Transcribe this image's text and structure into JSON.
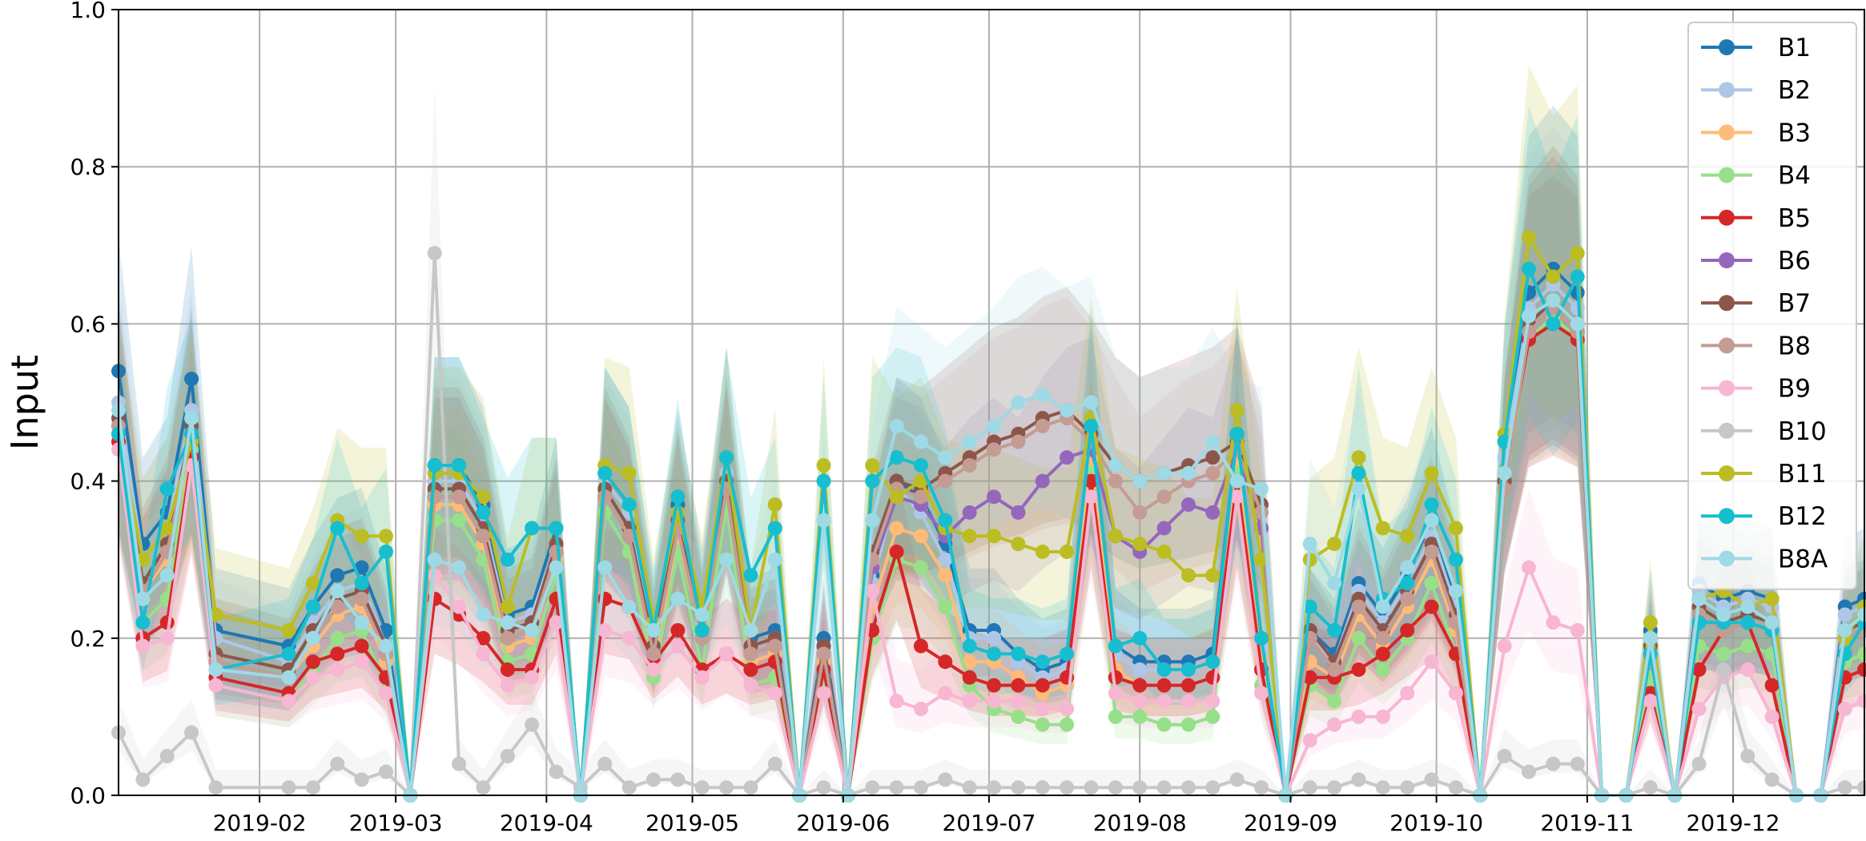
{
  "chart_data": {
    "type": "line",
    "title": "",
    "xlabel": "",
    "ylabel": "Input",
    "ylim": [
      0.0,
      1.0
    ],
    "xlim": [
      "2019-01-03",
      "2019-12-28"
    ],
    "grid": true,
    "legend_position": "top-right",
    "y_ticks": [
      "0.0",
      "0.2",
      "0.4",
      "0.6",
      "0.8",
      "1.0"
    ],
    "x_ticks": [
      {
        "date": "2019-02-01",
        "label": "2019-02"
      },
      {
        "date": "2019-03-01",
        "label": "2019-03"
      },
      {
        "date": "2019-04-01",
        "label": "2019-04"
      },
      {
        "date": "2019-05-01",
        "label": "2019-05"
      },
      {
        "date": "2019-06-01",
        "label": "2019-06"
      },
      {
        "date": "2019-07-01",
        "label": "2019-07"
      },
      {
        "date": "2019-08-01",
        "label": "2019-08"
      },
      {
        "date": "2019-09-01",
        "label": "2019-09"
      },
      {
        "date": "2019-10-01",
        "label": "2019-10"
      },
      {
        "date": "2019-11-01",
        "label": "2019-11"
      },
      {
        "date": "2019-12-01",
        "label": "2019-12"
      }
    ],
    "x": [
      "2019-01-03",
      "2019-01-08",
      "2019-01-13",
      "2019-01-18",
      "2019-01-23",
      "2019-02-07",
      "2019-02-12",
      "2019-02-17",
      "2019-02-22",
      "2019-02-27",
      "2019-03-04",
      "2019-03-09",
      "2019-03-14",
      "2019-03-19",
      "2019-03-24",
      "2019-03-29",
      "2019-04-03",
      "2019-04-08",
      "2019-04-13",
      "2019-04-18",
      "2019-04-23",
      "2019-04-28",
      "2019-05-03",
      "2019-05-08",
      "2019-05-13",
      "2019-05-18",
      "2019-05-23",
      "2019-05-28",
      "2019-06-02",
      "2019-06-07",
      "2019-06-12",
      "2019-06-17",
      "2019-06-22",
      "2019-06-27",
      "2019-07-02",
      "2019-07-07",
      "2019-07-12",
      "2019-07-17",
      "2019-07-22",
      "2019-07-27",
      "2019-08-01",
      "2019-08-06",
      "2019-08-11",
      "2019-08-16",
      "2019-08-21",
      "2019-08-26",
      "2019-08-31",
      "2019-09-05",
      "2019-09-10",
      "2019-09-15",
      "2019-09-20",
      "2019-09-25",
      "2019-09-30",
      "2019-10-05",
      "2019-10-10",
      "2019-10-15",
      "2019-10-20",
      "2019-10-25",
      "2019-10-30",
      "2019-11-04",
      "2019-11-09",
      "2019-11-14",
      "2019-11-19",
      "2019-11-24",
      "2019-11-29",
      "2019-12-04",
      "2019-12-09",
      "2019-12-14",
      "2019-12-19",
      "2019-12-24",
      "2019-12-28"
    ],
    "series": [
      {
        "name": "B1",
        "color": "#1f77b4",
        "values": [
          0.54,
          0.32,
          0.36,
          0.53,
          0.21,
          0.19,
          0.24,
          0.28,
          0.29,
          0.21,
          0.0,
          0.42,
          0.42,
          0.37,
          0.23,
          0.24,
          0.34,
          0.0,
          0.41,
          0.37,
          0.2,
          0.37,
          0.23,
          0.43,
          0.2,
          0.21,
          0.0,
          0.2,
          0.0,
          0.28,
          0.4,
          0.38,
          0.32,
          0.21,
          0.21,
          0.18,
          0.16,
          0.17,
          0.46,
          0.19,
          0.17,
          0.17,
          0.17,
          0.18,
          0.46,
          0.2,
          0.0,
          0.21,
          0.18,
          0.27,
          0.23,
          0.28,
          0.35,
          0.25,
          0.0,
          0.45,
          0.64,
          0.67,
          0.64,
          0.0,
          0.0,
          0.21,
          0.0,
          0.27,
          0.25,
          0.26,
          0.25,
          0.0,
          0.0,
          0.24,
          0.25
        ]
      },
      {
        "name": "B2",
        "color": "#aec7e8",
        "values": [
          0.5,
          0.3,
          0.34,
          0.49,
          0.2,
          0.17,
          0.22,
          0.26,
          0.27,
          0.19,
          0.0,
          0.4,
          0.4,
          0.35,
          0.22,
          0.23,
          0.32,
          0.0,
          0.4,
          0.36,
          0.19,
          0.35,
          0.22,
          0.41,
          0.19,
          0.2,
          0.0,
          0.19,
          0.0,
          0.27,
          0.39,
          0.36,
          0.3,
          0.2,
          0.2,
          0.17,
          0.15,
          0.16,
          0.45,
          0.18,
          0.16,
          0.16,
          0.16,
          0.17,
          0.45,
          0.19,
          0.0,
          0.2,
          0.17,
          0.26,
          0.22,
          0.27,
          0.33,
          0.24,
          0.0,
          0.43,
          0.62,
          0.65,
          0.62,
          0.0,
          0.0,
          0.2,
          0.0,
          0.26,
          0.24,
          0.25,
          0.24,
          0.0,
          0.0,
          0.23,
          0.24
        ]
      },
      {
        "name": "B3",
        "color": "#ffbb78",
        "values": [
          0.47,
          0.26,
          0.3,
          0.45,
          0.17,
          0.15,
          0.19,
          0.23,
          0.24,
          0.17,
          0.0,
          0.37,
          0.37,
          0.32,
          0.19,
          0.2,
          0.3,
          0.0,
          0.38,
          0.33,
          0.17,
          0.33,
          0.2,
          0.39,
          0.17,
          0.18,
          0.0,
          0.17,
          0.0,
          0.24,
          0.34,
          0.33,
          0.28,
          0.17,
          0.17,
          0.15,
          0.13,
          0.14,
          0.43,
          0.16,
          0.14,
          0.14,
          0.14,
          0.15,
          0.43,
          0.17,
          0.0,
          0.17,
          0.15,
          0.23,
          0.19,
          0.24,
          0.3,
          0.21,
          0.0,
          0.41,
          0.6,
          0.63,
          0.6,
          0.0,
          0.0,
          0.18,
          0.0,
          0.23,
          0.21,
          0.22,
          0.21,
          0.0,
          0.0,
          0.2,
          0.21
        ]
      },
      {
        "name": "B4",
        "color": "#98df8a",
        "values": [
          0.46,
          0.22,
          0.25,
          0.44,
          0.14,
          0.12,
          0.16,
          0.2,
          0.21,
          0.14,
          0.0,
          0.35,
          0.35,
          0.3,
          0.17,
          0.18,
          0.28,
          0.0,
          0.36,
          0.31,
          0.15,
          0.31,
          0.16,
          0.37,
          0.14,
          0.15,
          0.0,
          0.15,
          0.0,
          0.2,
          0.3,
          0.29,
          0.24,
          0.14,
          0.11,
          0.1,
          0.09,
          0.09,
          0.41,
          0.1,
          0.1,
          0.09,
          0.09,
          0.1,
          0.41,
          0.14,
          0.0,
          0.14,
          0.12,
          0.2,
          0.16,
          0.2,
          0.27,
          0.18,
          0.0,
          0.39,
          0.58,
          0.61,
          0.58,
          0.0,
          0.0,
          0.15,
          0.0,
          0.19,
          0.18,
          0.19,
          0.18,
          0.0,
          0.0,
          0.17,
          0.18
        ]
      },
      {
        "name": "B5",
        "color": "#d62728",
        "values": [
          0.45,
          0.2,
          0.22,
          0.43,
          0.15,
          0.13,
          0.17,
          0.18,
          0.19,
          0.15,
          0.0,
          0.25,
          0.23,
          0.2,
          0.16,
          0.16,
          0.25,
          0.0,
          0.25,
          0.24,
          0.17,
          0.21,
          0.16,
          0.18,
          0.16,
          0.17,
          0.0,
          0.16,
          0.0,
          0.21,
          0.31,
          0.19,
          0.17,
          0.15,
          0.14,
          0.14,
          0.14,
          0.15,
          0.4,
          0.15,
          0.14,
          0.14,
          0.14,
          0.15,
          0.4,
          0.16,
          0.0,
          0.15,
          0.15,
          0.16,
          0.18,
          0.21,
          0.24,
          0.18,
          0.0,
          0.4,
          0.58,
          0.6,
          0.58,
          0.0,
          0.0,
          0.13,
          0.0,
          0.16,
          0.21,
          0.22,
          0.14,
          0.0,
          0.0,
          0.15,
          0.16
        ]
      },
      {
        "name": "B6",
        "color": "#9467bd",
        "values": [
          0.47,
          0.26,
          0.31,
          0.46,
          0.17,
          0.15,
          0.2,
          0.24,
          0.25,
          0.18,
          0.0,
          0.38,
          0.38,
          0.33,
          0.2,
          0.21,
          0.31,
          0.0,
          0.38,
          0.33,
          0.18,
          0.34,
          0.2,
          0.39,
          0.18,
          0.19,
          0.0,
          0.18,
          0.0,
          0.29,
          0.38,
          0.37,
          0.33,
          0.36,
          0.38,
          0.36,
          0.4,
          0.43,
          0.44,
          0.33,
          0.31,
          0.34,
          0.37,
          0.36,
          0.44,
          0.34,
          0.0,
          0.2,
          0.16,
          0.24,
          0.2,
          0.25,
          0.31,
          0.22,
          0.0,
          0.39,
          0.59,
          0.62,
          0.59,
          0.0,
          0.0,
          0.18,
          0.0,
          0.23,
          0.21,
          0.22,
          0.21,
          0.0,
          0.0,
          0.2,
          0.21
        ]
      },
      {
        "name": "B7",
        "color": "#8c564b",
        "values": [
          0.48,
          0.27,
          0.32,
          0.47,
          0.18,
          0.16,
          0.21,
          0.25,
          0.26,
          0.19,
          0.0,
          0.39,
          0.39,
          0.34,
          0.21,
          0.22,
          0.32,
          0.0,
          0.39,
          0.34,
          0.19,
          0.35,
          0.21,
          0.4,
          0.19,
          0.2,
          0.0,
          0.19,
          0.0,
          0.31,
          0.4,
          0.39,
          0.41,
          0.43,
          0.45,
          0.46,
          0.48,
          0.49,
          0.46,
          0.42,
          0.4,
          0.41,
          0.42,
          0.43,
          0.45,
          0.37,
          0.0,
          0.21,
          0.17,
          0.25,
          0.21,
          0.26,
          0.32,
          0.23,
          0.0,
          0.4,
          0.6,
          0.63,
          0.6,
          0.0,
          0.0,
          0.19,
          0.0,
          0.24,
          0.22,
          0.23,
          0.22,
          0.0,
          0.0,
          0.21,
          0.22
        ]
      },
      {
        "name": "B8",
        "color": "#c49c94",
        "values": [
          0.47,
          0.26,
          0.31,
          0.46,
          0.17,
          0.15,
          0.2,
          0.24,
          0.25,
          0.18,
          0.0,
          0.38,
          0.38,
          0.33,
          0.2,
          0.21,
          0.31,
          0.0,
          0.38,
          0.33,
          0.18,
          0.34,
          0.2,
          0.39,
          0.18,
          0.19,
          0.0,
          0.18,
          0.0,
          0.3,
          0.39,
          0.38,
          0.4,
          0.42,
          0.44,
          0.45,
          0.47,
          0.48,
          0.45,
          0.4,
          0.36,
          0.38,
          0.4,
          0.41,
          0.44,
          0.36,
          0.0,
          0.2,
          0.16,
          0.24,
          0.2,
          0.25,
          0.31,
          0.22,
          0.0,
          0.39,
          0.59,
          0.62,
          0.59,
          0.0,
          0.0,
          0.18,
          0.0,
          0.23,
          0.21,
          0.22,
          0.21,
          0.0,
          0.0,
          0.2,
          0.21
        ]
      },
      {
        "name": "B9",
        "color": "#f7b6d2",
        "values": [
          0.44,
          0.19,
          0.2,
          0.42,
          0.14,
          0.12,
          0.15,
          0.16,
          0.17,
          0.13,
          0.0,
          0.28,
          0.24,
          0.18,
          0.14,
          0.15,
          0.22,
          0.0,
          0.21,
          0.2,
          0.16,
          0.19,
          0.15,
          0.18,
          0.14,
          0.13,
          0.0,
          0.13,
          0.0,
          0.26,
          0.12,
          0.11,
          0.13,
          0.12,
          0.12,
          0.12,
          0.11,
          0.11,
          0.38,
          0.13,
          0.12,
          0.12,
          0.12,
          0.12,
          0.38,
          0.13,
          0.0,
          0.07,
          0.09,
          0.1,
          0.1,
          0.13,
          0.17,
          0.13,
          0.0,
          0.19,
          0.29,
          0.22,
          0.21,
          0.0,
          0.0,
          0.12,
          0.0,
          0.11,
          0.15,
          0.16,
          0.1,
          0.0,
          0.0,
          0.11,
          0.12
        ]
      },
      {
        "name": "B10",
        "color": "#c7c7c7",
        "values": [
          0.08,
          0.02,
          0.05,
          0.08,
          0.01,
          0.01,
          0.01,
          0.04,
          0.02,
          0.03,
          0.0,
          0.69,
          0.04,
          0.01,
          0.05,
          0.09,
          0.03,
          0.01,
          0.04,
          0.01,
          0.02,
          0.02,
          0.01,
          0.01,
          0.01,
          0.04,
          0.0,
          0.01,
          0.0,
          0.01,
          0.01,
          0.01,
          0.02,
          0.01,
          0.01,
          0.01,
          0.01,
          0.01,
          0.01,
          0.01,
          0.01,
          0.01,
          0.01,
          0.01,
          0.02,
          0.01,
          0.0,
          0.01,
          0.01,
          0.02,
          0.01,
          0.01,
          0.02,
          0.01,
          0.0,
          0.05,
          0.03,
          0.04,
          0.04,
          0.0,
          0.0,
          0.01,
          0.0,
          0.04,
          0.16,
          0.05,
          0.02,
          0.0,
          0.0,
          0.01,
          0.01
        ]
      },
      {
        "name": "B11",
        "color": "#bcbd22",
        "values": [
          0.46,
          0.3,
          0.34,
          0.45,
          0.23,
          0.21,
          0.27,
          0.35,
          0.33,
          0.33,
          0.0,
          0.41,
          0.41,
          0.38,
          0.24,
          0.34,
          0.34,
          0.0,
          0.42,
          0.41,
          0.22,
          0.36,
          0.24,
          0.43,
          0.21,
          0.37,
          0.0,
          0.42,
          0.0,
          0.42,
          0.38,
          0.4,
          0.34,
          0.33,
          0.33,
          0.32,
          0.31,
          0.31,
          0.48,
          0.33,
          0.32,
          0.31,
          0.28,
          0.28,
          0.49,
          0.3,
          0.0,
          0.3,
          0.32,
          0.43,
          0.34,
          0.33,
          0.41,
          0.34,
          0.0,
          0.46,
          0.71,
          0.66,
          0.69,
          0.0,
          0.0,
          0.22,
          0.0,
          0.25,
          0.26,
          0.24,
          0.25,
          0.0,
          0.0,
          0.2,
          0.24
        ]
      },
      {
        "name": "B12",
        "color": "#17becf",
        "values": [
          0.46,
          0.22,
          0.39,
          0.46,
          0.16,
          0.18,
          0.24,
          0.34,
          0.27,
          0.31,
          0.0,
          0.42,
          0.42,
          0.36,
          0.3,
          0.34,
          0.34,
          0.0,
          0.41,
          0.37,
          0.21,
          0.38,
          0.21,
          0.43,
          0.28,
          0.34,
          0.0,
          0.4,
          0.0,
          0.4,
          0.43,
          0.42,
          0.35,
          0.19,
          0.18,
          0.18,
          0.17,
          0.18,
          0.47,
          0.19,
          0.2,
          0.16,
          0.16,
          0.17,
          0.46,
          0.2,
          0.0,
          0.24,
          0.21,
          0.41,
          0.25,
          0.27,
          0.37,
          0.3,
          0.0,
          0.45,
          0.67,
          0.6,
          0.66,
          0.0,
          0.0,
          0.18,
          0.0,
          0.22,
          0.22,
          0.22,
          0.21,
          0.0,
          0.0,
          0.18,
          0.22
        ]
      },
      {
        "name": "B8A",
        "color": "#9edae5",
        "values": [
          0.49,
          0.25,
          0.28,
          0.48,
          0.16,
          0.15,
          0.2,
          0.26,
          0.22,
          0.19,
          0.0,
          0.3,
          0.29,
          0.23,
          0.22,
          0.21,
          0.29,
          0.0,
          0.29,
          0.24,
          0.21,
          0.25,
          0.23,
          0.3,
          0.21,
          0.3,
          0.0,
          0.35,
          0.0,
          0.35,
          0.47,
          0.45,
          0.43,
          0.45,
          0.47,
          0.5,
          0.51,
          0.49,
          0.5,
          0.42,
          0.4,
          0.41,
          0.41,
          0.45,
          0.4,
          0.39,
          0.0,
          0.32,
          0.27,
          0.39,
          0.24,
          0.29,
          0.35,
          0.26,
          0.0,
          0.41,
          0.61,
          0.63,
          0.6,
          0.0,
          0.0,
          0.2,
          0.0,
          0.25,
          0.23,
          0.24,
          0.22,
          0.0,
          0.0,
          0.21,
          0.23
        ]
      }
    ]
  }
}
